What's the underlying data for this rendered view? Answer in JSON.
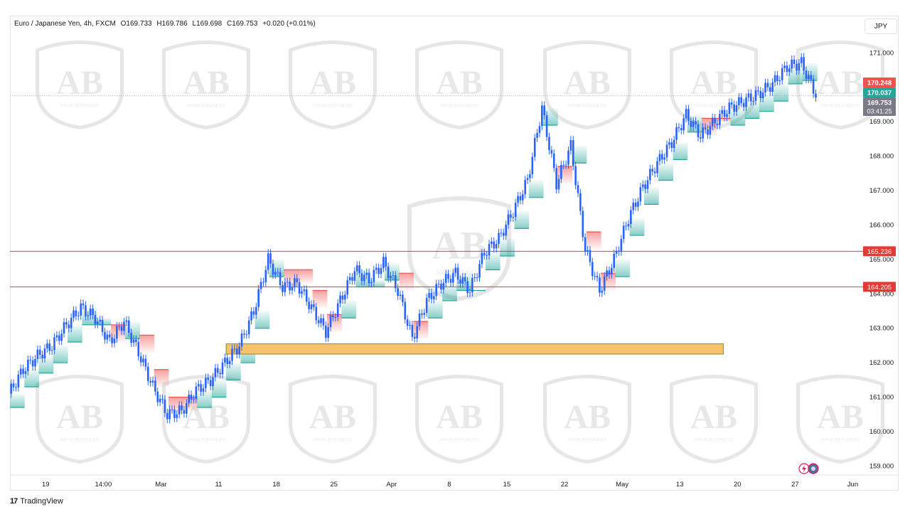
{
  "header": {
    "symbol": "Euro / Japanese Yen, 4h, FXCM",
    "open": "O169.733",
    "high": "H169.786",
    "low": "L169.698",
    "close": "C169.753",
    "change": "+0.020 (+0.01%)",
    "currency_button": "JPY"
  },
  "footer": {
    "brand": "TradingView",
    "brand_icon": "tradingview-logo-icon"
  },
  "watermark": {
    "text": "ARAB BUSINESS",
    "monogram": "AB"
  },
  "colors": {
    "up": "#2962ff",
    "down": "#2962ff",
    "cloud_up": "#26a69a",
    "cloud_down": "#ef5350",
    "level_line": "#e53935",
    "zone_fill": "#f6c26b",
    "zone_border": "#8a8f2a",
    "price_badge_red": "#ef5350",
    "price_badge_green": "#26a69a",
    "price_badge_gray": "#787b86"
  },
  "chart_data": {
    "type": "line",
    "title": "Euro / Japanese Yen, 4h, FXCM",
    "ylim": [
      158.8,
      171.4
    ],
    "y_ticks": [
      "171.000",
      "170.000",
      "169.000",
      "168.000",
      "167.000",
      "166.000",
      "165.000",
      "164.000",
      "163.000",
      "162.000",
      "161.000",
      "160.000",
      "159.000"
    ],
    "x_ticks": [
      "19",
      "14:00",
      "Mar",
      "11",
      "18",
      "25",
      "Apr",
      "8",
      "15",
      "22",
      "May",
      "13",
      "20",
      "27",
      "Jun"
    ],
    "x_tick_index": [
      1,
      5,
      9,
      13,
      17,
      21,
      25,
      29,
      33,
      37,
      41,
      45,
      49,
      53,
      57
    ],
    "x_count": 60,
    "series": [
      {
        "values": [
          161.1,
          161.8,
          162.2,
          162.5,
          163.1,
          163.6,
          163.3,
          162.6,
          163.2,
          162.3,
          161.3,
          160.5,
          160.6,
          161.2,
          161.5,
          162.0,
          162.5,
          163.5,
          165.0,
          164.2,
          164.3,
          163.6,
          162.9,
          163.8,
          164.7,
          164.4,
          164.9,
          164.1,
          162.7,
          163.8,
          164.3,
          164.6,
          164.1,
          165.2,
          165.6,
          166.4,
          167.3,
          169.4,
          167.2,
          168.3,
          165.3,
          164.1,
          165.0,
          166.2,
          167.1,
          167.8,
          168.4,
          169.2,
          168.6,
          169.0,
          169.4,
          169.6,
          169.8,
          170.1,
          170.6,
          170.7,
          169.8
        ],
        "name": ""
      }
    ],
    "levels": [
      {
        "value": 165.236,
        "label": "165.236"
      },
      {
        "value": 164.205,
        "label": "164.205"
      }
    ],
    "zone": {
      "from_index": 15,
      "to_index": 49.5,
      "low": 162.25,
      "high": 162.55
    },
    "price_labels": [
      {
        "label": "170.248",
        "value": 170.248,
        "color": "red"
      },
      {
        "label": "170.037",
        "value": 170.037,
        "color": "green"
      },
      {
        "label": "169.753",
        "value": 169.753,
        "color": "gray",
        "sub": "03:41:25"
      }
    ],
    "last_price": 169.753,
    "grid": false
  }
}
